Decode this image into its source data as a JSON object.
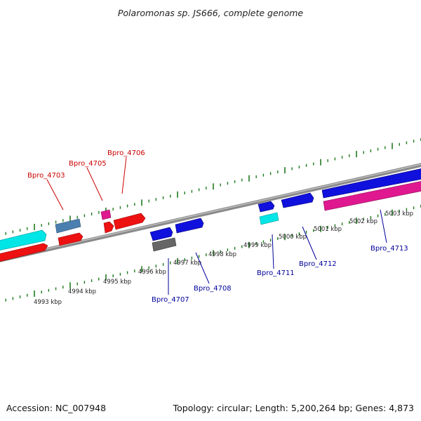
{
  "title": "Polaromonas sp. JS666, complete genome",
  "footer": {
    "accession": "Accession: NC_007948",
    "summary": "Topology: circular; Length: 5,200,264 bp; Genes: 4,873"
  },
  "colors": {
    "backbone": "#888888",
    "ticks": "#1f7a1f",
    "label_red": "#cc0000",
    "label_blue": "#000099",
    "gene_red": "#ee1111",
    "gene_blue": "#1111dd",
    "gene_cyan": "#00e5e5",
    "gene_steelblue": "#4477aa",
    "gene_magenta": "#e0188f",
    "gene_gray": "#666666"
  },
  "scale_labels": [
    "4993 kbp",
    "4994 kbp",
    "4995 kbp",
    "4996 kbp",
    "4997 kbp",
    "4998 kbp",
    "4999 kbp",
    "5000 kbp",
    "5001 kbp",
    "5002 kbp",
    "5003 kbp"
  ],
  "gene_labels": {
    "top": [
      "Bpro_4703",
      "Bpro_4705",
      "Bpro_4706"
    ],
    "bottom": [
      "Bpro_4707",
      "Bpro_4708",
      "Bpro_4711",
      "Bpro_4712",
      "Bpro_4713"
    ]
  }
}
